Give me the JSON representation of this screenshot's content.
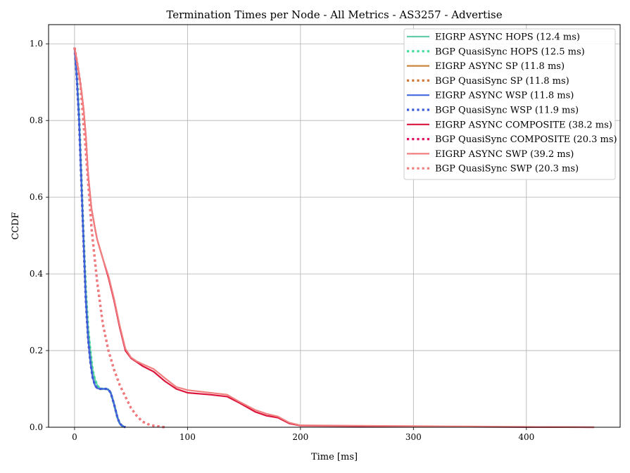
{
  "chart_data": {
    "type": "line",
    "title": "Termination Times per Node - All Metrics - AS3257 - Advertise",
    "xlabel": "Time [ms]",
    "ylabel": "CCDF",
    "xlim": [
      -23,
      483
    ],
    "ylim": [
      0.0,
      1.05
    ],
    "xticks": [
      0,
      100,
      200,
      300,
      400
    ],
    "yticks": [
      0.0,
      0.2,
      0.4,
      0.6,
      0.8,
      1.0
    ],
    "xtick_labels": [
      "0",
      "100",
      "200",
      "300",
      "400"
    ],
    "ytick_labels": [
      "0.0",
      "0.2",
      "0.4",
      "0.6",
      "0.8",
      "1.0"
    ],
    "grid": true,
    "legend_position": "top-right",
    "series": [
      {
        "name": "EIGRP ASYNC HOPS (12.4 ms)",
        "color": "#66cdaa",
        "style": "solid",
        "x": [
          0,
          2,
          4,
          6,
          8,
          10,
          12,
          14,
          16,
          18,
          20,
          22,
          25,
          28,
          30,
          32,
          35,
          38,
          40,
          42,
          45
        ],
        "y": [
          0.99,
          0.92,
          0.82,
          0.66,
          0.5,
          0.36,
          0.26,
          0.2,
          0.15,
          0.125,
          0.11,
          0.102,
          0.1,
          0.1,
          0.098,
          0.09,
          0.06,
          0.025,
          0.01,
          0.004,
          0.0
        ]
      },
      {
        "name": "BGP QuasiSync HOPS (12.5 ms)",
        "color": "#3ddc97",
        "style": "dotted",
        "x": [
          0,
          2,
          4,
          6,
          8,
          10,
          12,
          14,
          16,
          18,
          20,
          22,
          25,
          28,
          30,
          32,
          35,
          38,
          40,
          42,
          45
        ],
        "y": [
          0.99,
          0.92,
          0.82,
          0.66,
          0.5,
          0.36,
          0.26,
          0.2,
          0.15,
          0.125,
          0.11,
          0.102,
          0.1,
          0.1,
          0.098,
          0.09,
          0.06,
          0.025,
          0.01,
          0.004,
          0.0
        ]
      },
      {
        "name": "EIGRP ASYNC SP (11.8 ms)",
        "color": "#cd853f",
        "style": "solid",
        "x": [
          0,
          2,
          4,
          6,
          8,
          10,
          12,
          14,
          16,
          18,
          20,
          22,
          25,
          28,
          30,
          32,
          35,
          38,
          40,
          42,
          45
        ],
        "y": [
          0.99,
          0.91,
          0.8,
          0.64,
          0.48,
          0.33,
          0.23,
          0.17,
          0.13,
          0.11,
          0.102,
          0.1,
          0.1,
          0.1,
          0.098,
          0.09,
          0.06,
          0.025,
          0.01,
          0.004,
          0.0
        ]
      },
      {
        "name": "BGP QuasiSync SP (11.8 ms)",
        "color": "#d2773a",
        "style": "dotted",
        "x": [
          0,
          2,
          4,
          6,
          8,
          10,
          12,
          14,
          16,
          18,
          20,
          22,
          25,
          28,
          30,
          32,
          35,
          38,
          40,
          42,
          45
        ],
        "y": [
          0.99,
          0.91,
          0.8,
          0.64,
          0.48,
          0.33,
          0.23,
          0.17,
          0.13,
          0.11,
          0.102,
          0.1,
          0.1,
          0.1,
          0.098,
          0.09,
          0.06,
          0.025,
          0.01,
          0.004,
          0.0
        ]
      },
      {
        "name": "EIGRP ASYNC WSP (11.8 ms)",
        "color": "#4169e1",
        "style": "solid",
        "x": [
          0,
          2,
          4,
          6,
          8,
          10,
          12,
          14,
          16,
          18,
          20,
          22,
          25,
          28,
          30,
          32,
          35,
          38,
          40,
          42,
          45
        ],
        "y": [
          0.99,
          0.91,
          0.8,
          0.64,
          0.48,
          0.33,
          0.23,
          0.17,
          0.13,
          0.11,
          0.102,
          0.1,
          0.1,
          0.1,
          0.098,
          0.09,
          0.06,
          0.025,
          0.01,
          0.004,
          0.0
        ]
      },
      {
        "name": "BGP QuasiSync WSP (11.9 ms)",
        "color": "#3b5bdb",
        "style": "dotted",
        "x": [
          0,
          2,
          4,
          6,
          8,
          10,
          12,
          14,
          16,
          18,
          20,
          22,
          25,
          28,
          30,
          32,
          35,
          38,
          40,
          42,
          45
        ],
        "y": [
          0.99,
          0.91,
          0.8,
          0.64,
          0.48,
          0.33,
          0.23,
          0.17,
          0.13,
          0.11,
          0.102,
          0.1,
          0.1,
          0.1,
          0.098,
          0.09,
          0.06,
          0.025,
          0.01,
          0.004,
          0.0
        ]
      },
      {
        "name": "EIGRP ASYNC COMPOSITE (38.2 ms)",
        "color": "#dc143c",
        "style": "solid",
        "x": [
          0,
          3,
          6,
          8,
          10,
          12,
          15,
          18,
          20,
          25,
          30,
          35,
          40,
          45,
          50,
          55,
          60,
          70,
          80,
          90,
          100,
          120,
          135,
          145,
          160,
          170,
          180,
          190,
          200,
          250,
          300,
          350,
          400,
          460
        ],
        "y": [
          0.99,
          0.94,
          0.88,
          0.83,
          0.76,
          0.66,
          0.57,
          0.52,
          0.49,
          0.44,
          0.39,
          0.33,
          0.26,
          0.2,
          0.18,
          0.17,
          0.16,
          0.145,
          0.12,
          0.1,
          0.09,
          0.085,
          0.08,
          0.065,
          0.04,
          0.03,
          0.025,
          0.01,
          0.004,
          0.003,
          0.002,
          0.001,
          0.0005,
          0.0
        ]
      },
      {
        "name": "BGP QuasiSync COMPOSITE (20.3 ms)",
        "color": "#e0115f",
        "style": "dotted",
        "x": [
          0,
          5,
          10,
          15,
          20,
          25,
          30,
          35,
          40,
          45,
          50,
          55,
          60,
          65,
          70,
          75,
          80
        ],
        "y": [
          0.99,
          0.9,
          0.72,
          0.52,
          0.38,
          0.27,
          0.2,
          0.15,
          0.11,
          0.08,
          0.05,
          0.03,
          0.015,
          0.008,
          0.004,
          0.002,
          0.0
        ]
      },
      {
        "name": "EIGRP ASYNC SWP (39.2 ms)",
        "color": "#f08080",
        "style": "solid",
        "x": [
          0,
          3,
          6,
          8,
          10,
          12,
          15,
          18,
          20,
          25,
          30,
          35,
          40,
          45,
          50,
          55,
          60,
          70,
          80,
          90,
          100,
          120,
          135,
          145,
          160,
          170,
          180,
          190,
          200,
          250,
          300,
          350,
          400,
          460
        ],
        "y": [
          0.99,
          0.94,
          0.88,
          0.83,
          0.76,
          0.66,
          0.57,
          0.52,
          0.49,
          0.44,
          0.395,
          0.335,
          0.265,
          0.205,
          0.182,
          0.172,
          0.165,
          0.152,
          0.128,
          0.105,
          0.097,
          0.09,
          0.085,
          0.068,
          0.045,
          0.035,
          0.028,
          0.012,
          0.005,
          0.004,
          0.003,
          0.002,
          0.001,
          0.0
        ]
      },
      {
        "name": "BGP QuasiSync SWP (20.3 ms)",
        "color": "#f07c7c",
        "style": "dotted",
        "x": [
          0,
          5,
          10,
          15,
          20,
          25,
          30,
          35,
          40,
          45,
          50,
          55,
          60,
          65,
          70,
          75,
          80
        ],
        "y": [
          0.99,
          0.9,
          0.72,
          0.52,
          0.38,
          0.27,
          0.2,
          0.15,
          0.11,
          0.08,
          0.05,
          0.03,
          0.015,
          0.008,
          0.004,
          0.002,
          0.0
        ]
      }
    ]
  }
}
